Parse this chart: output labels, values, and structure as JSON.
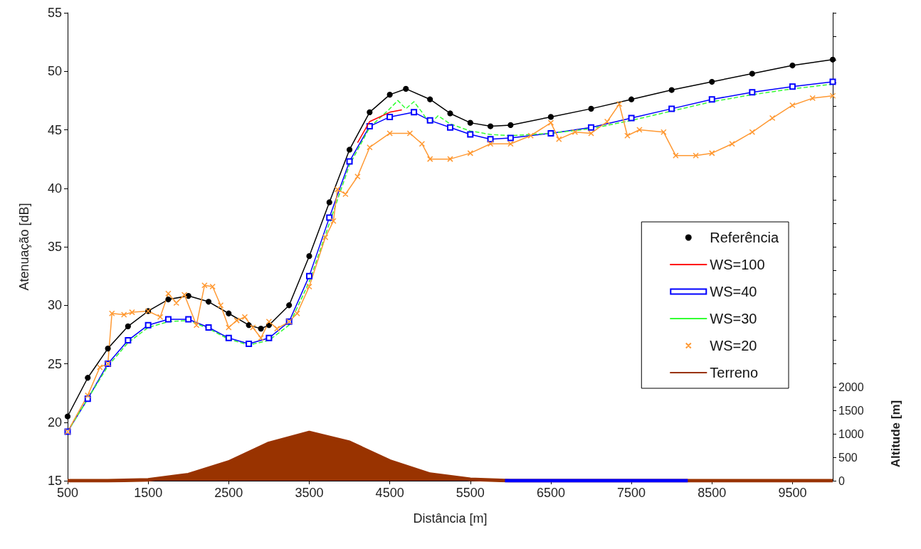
{
  "chart_data": {
    "type": "line",
    "xlabel": "Distância [m]",
    "ylabel": "Atenuação [dB]",
    "y2label": "Altitude [m]",
    "xlim": [
      500,
      10000
    ],
    "xticks": [
      500,
      1500,
      2500,
      3500,
      4500,
      5500,
      6500,
      7500,
      8500,
      9500
    ],
    "ylim": [
      15,
      55
    ],
    "yticks": [
      15,
      20,
      25,
      30,
      35,
      40,
      45,
      50,
      55
    ],
    "y2lim": [
      0,
      10000
    ],
    "y2ticks": [
      0,
      500,
      1000,
      1500,
      2000,
      {
        "value": 2500,
        "label": null
      },
      {
        "value": 3000,
        "label": null
      },
      {
        "value": 3500,
        "label": null
      },
      {
        "value": 4000,
        "label": null
      },
      {
        "value": 4500,
        "label": null
      },
      {
        "value": 5000,
        "label": null
      },
      {
        "value": 5500,
        "label": null
      },
      {
        "value": 6000,
        "label": null
      },
      {
        "value": 6500,
        "label": null
      },
      {
        "value": 7000,
        "label": null
      },
      {
        "value": 7500,
        "label": null
      },
      {
        "value": 8000,
        "label": null
      },
      {
        "value": 8500,
        "label": null
      },
      {
        "value": 9000,
        "label": null
      },
      {
        "value": 9500,
        "label": null
      },
      {
        "value": 10000,
        "label": null
      }
    ],
    "grid": false,
    "legend": "right",
    "series": [
      {
        "name": "Referência",
        "color": "#000000",
        "marker": "circle",
        "line_style": "solid",
        "x": [
          500,
          750,
          1000,
          1250,
          1500,
          1750,
          2000,
          2250,
          2500,
          2750,
          2900,
          3000,
          3250,
          3500,
          3750,
          4000,
          4250,
          4500,
          4700,
          5000,
          5250,
          5500,
          5750,
          6000,
          6500,
          7000,
          7500,
          8000,
          8500,
          9000,
          9500,
          10000
        ],
        "values": [
          20.5,
          23.8,
          26.3,
          28.2,
          29.5,
          30.5,
          30.8,
          30.3,
          29.3,
          28.3,
          28.0,
          28.3,
          30.0,
          34.2,
          38.8,
          43.3,
          46.5,
          48.0,
          48.5,
          47.6,
          46.4,
          45.6,
          45.3,
          45.4,
          46.1,
          46.8,
          47.6,
          48.4,
          49.1,
          49.8,
          50.5,
          51.0
        ]
      },
      {
        "name": "WS=100",
        "color": "#ff0000",
        "marker": "none",
        "line_style": "solid",
        "x": [
          4100,
          4250,
          4500,
          4650
        ],
        "values": [
          43.9,
          45.7,
          46.5,
          46.7
        ]
      },
      {
        "name": "WS=40",
        "color": "#0000ff",
        "marker": "square",
        "line_style": "solid",
        "x": [
          500,
          750,
          1000,
          1250,
          1500,
          1750,
          2000,
          2250,
          2500,
          2750,
          3000,
          3250,
          3500,
          3750,
          4000,
          4250,
          4500,
          4800,
          5000,
          5250,
          5500,
          5750,
          6000,
          6500,
          7000,
          7500,
          8000,
          8500,
          9000,
          9500,
          10000
        ],
        "values": [
          19.2,
          22.0,
          25.0,
          27.0,
          28.3,
          28.8,
          28.8,
          28.1,
          27.2,
          26.7,
          27.2,
          28.6,
          32.5,
          37.5,
          42.3,
          45.3,
          46.1,
          46.5,
          45.8,
          45.2,
          44.6,
          44.2,
          44.3,
          44.7,
          45.2,
          46.0,
          46.8,
          47.6,
          48.2,
          48.7,
          49.1
        ]
      },
      {
        "name": "WS=30",
        "color": "#33ff33",
        "marker": "none",
        "line_style": "dashed",
        "x": [
          500,
          750,
          1000,
          1250,
          1500,
          1750,
          2000,
          2250,
          2500,
          2750,
          3000,
          3250,
          3500,
          3750,
          4000,
          4250,
          4500,
          4600,
          4700,
          4800,
          4900,
          5000,
          5100,
          5250,
          5500,
          5750,
          6000,
          6500,
          7000,
          7500,
          8000,
          8500,
          9000,
          9500,
          10000
        ],
        "values": [
          19.2,
          22.0,
          24.8,
          26.8,
          28.1,
          28.6,
          28.7,
          28.0,
          27.1,
          26.6,
          27.0,
          28.3,
          32.0,
          37.0,
          42.0,
          45.2,
          46.8,
          47.5,
          46.8,
          47.4,
          46.5,
          45.5,
          46.2,
          45.5,
          44.9,
          44.6,
          44.5,
          44.7,
          45.1,
          45.8,
          46.6,
          47.4,
          48.0,
          48.5,
          48.9
        ]
      },
      {
        "name": "WS=20",
        "color": "#ff9933",
        "marker": "cross",
        "line_style": "solid",
        "x": [
          500,
          750,
          900,
          1000,
          1050,
          1200,
          1300,
          1500,
          1650,
          1750,
          1850,
          1950,
          2100,
          2200,
          2300,
          2400,
          2500,
          2600,
          2700,
          2800,
          2900,
          3000,
          3100,
          3250,
          3350,
          3500,
          3700,
          3800,
          3850,
          3950,
          4100,
          4250,
          4500,
          4750,
          4900,
          5000,
          5250,
          5500,
          5750,
          6000,
          6250,
          6500,
          6600,
          6800,
          7000,
          7200,
          7350,
          7450,
          7600,
          7900,
          8050,
          8300,
          8500,
          8750,
          9000,
          9250,
          9500,
          9750,
          10000
        ],
        "values": [
          19.2,
          22.3,
          24.7,
          25.0,
          29.3,
          29.2,
          29.4,
          29.5,
          29.0,
          31.0,
          30.2,
          30.9,
          28.3,
          31.7,
          31.6,
          30.0,
          28.1,
          28.7,
          29.0,
          28.1,
          27.2,
          28.6,
          28.0,
          28.6,
          29.3,
          31.6,
          35.8,
          37.2,
          39.9,
          39.5,
          41.0,
          43.5,
          44.7,
          44.7,
          43.8,
          42.5,
          42.5,
          43.0,
          43.8,
          43.8,
          44.5,
          45.6,
          44.2,
          44.8,
          44.7,
          45.7,
          47.2,
          44.5,
          45.0,
          44.8,
          42.8,
          42.8,
          43.0,
          43.8,
          44.8,
          46.0,
          47.1,
          47.7,
          47.9
        ]
      },
      {
        "name": "Terreno",
        "type": "area",
        "axis": "y2",
        "color": "#993300",
        "marker": "none",
        "line_style": "solid",
        "x": [
          500,
          1000,
          1500,
          2000,
          2500,
          3000,
          3500,
          4000,
          4500,
          5000,
          5500,
          6000,
          7000,
          8000,
          9000,
          10000
        ],
        "values": [
          0,
          0,
          20,
          130,
          400,
          800,
          1030,
          820,
          420,
          140,
          30,
          0,
          0,
          0,
          0,
          0
        ]
      },
      {
        "color": "#0000ff",
        "axis": "y2",
        "marker": "none",
        "line_style": "solid",
        "x": [
          5930,
          8200
        ],
        "values": [
          0,
          0
        ]
      }
    ]
  }
}
